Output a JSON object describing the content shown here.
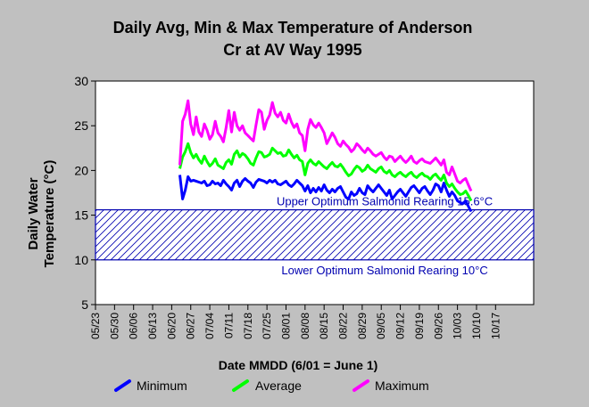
{
  "chart_data": {
    "type": "line",
    "title_line1": "Daily Avg, Min & Max Temperature of Anderson",
    "title_line2": "Cr at AV Way 1995",
    "xlabel": "Date MMDD (6/01 = June 1)",
    "ylabel_line1": "Daily Water",
    "ylabel_line2": "Temperature (°C)",
    "ylim": [
      5,
      30
    ],
    "yticks": [
      "5",
      "10",
      "15",
      "20",
      "25",
      "30"
    ],
    "xticks": [
      "05/23",
      "05/30",
      "06/06",
      "06/13",
      "06/20",
      "06/27",
      "07/04",
      "07/11",
      "07/18",
      "07/25",
      "08/01",
      "08/08",
      "08/15",
      "08/22",
      "08/29",
      "09/05",
      "09/12",
      "09/19",
      "09/26",
      "10/03",
      "10/10",
      "10/17"
    ],
    "x_start_day": 0,
    "x_end_day": 161,
    "band": {
      "upper": 15.6,
      "lower": 10,
      "upper_label": "Upper Optimum Salmonid Rearing 15.6°C",
      "lower_label": "Lower Optimum Salmonid Rearing 10°C"
    },
    "x_start_date": "05/23",
    "series": [
      {
        "name": "Minimum",
        "color": "#0000ff",
        "values": [
          19.5,
          16.8,
          17.8,
          19.3,
          18.8,
          18.9,
          18.8,
          18.7,
          18.6,
          18.8,
          18.3,
          18.4,
          18.8,
          18.5,
          18.6,
          18.3,
          18.9,
          18.5,
          18.2,
          17.8,
          18.6,
          18.9,
          18.2,
          18.8,
          19.1,
          18.8,
          18.6,
          18.1,
          18.7,
          19.0,
          18.9,
          18.8,
          18.6,
          18.9,
          18.7,
          18.9,
          18.5,
          18.4,
          18.6,
          18.8,
          18.4,
          18.2,
          18.5,
          18.9,
          18.6,
          18.3,
          17.7,
          18.3,
          17.5,
          18.0,
          17.6,
          18.1,
          17.7,
          18.4,
          17.8,
          17.5,
          17.9,
          17.6,
          18.0,
          18.2,
          17.6,
          17.0,
          16.8,
          17.6,
          17.2,
          17.4,
          18.0,
          17.5,
          17.3,
          18.3,
          17.9,
          17.6,
          18.0,
          18.4,
          18.0,
          17.6,
          17.2,
          17.8,
          16.8,
          17.2,
          17.6,
          17.9,
          17.5,
          17.1,
          17.6,
          18.1,
          18.3,
          17.9,
          17.5,
          18.0,
          18.2,
          17.7,
          17.3,
          17.8,
          18.5,
          18.3,
          17.6,
          18.6,
          17.8,
          17.1,
          17.6,
          17.2,
          16.6,
          16.4,
          16.3,
          16.6,
          16.0,
          15.4
        ],
        "x_start": "06/23"
      },
      {
        "name": "Average",
        "color": "#00ff00",
        "values": [
          20.2,
          21.5,
          22.1,
          23.0,
          22.0,
          21.4,
          21.8,
          21.2,
          20.8,
          21.6,
          21.0,
          20.5,
          20.8,
          21.3,
          20.6,
          20.4,
          20.2,
          20.9,
          21.2,
          20.7,
          21.8,
          22.2,
          21.5,
          21.9,
          21.7,
          21.3,
          20.8,
          20.6,
          21.4,
          22.1,
          22.0,
          21.5,
          21.6,
          21.8,
          22.5,
          22.2,
          21.9,
          22.0,
          21.6,
          21.7,
          22.3,
          21.8,
          21.4,
          21.7,
          21.2,
          21.0,
          19.5,
          20.8,
          21.2,
          20.8,
          20.6,
          21.0,
          20.7,
          20.4,
          20.2,
          20.6,
          20.9,
          20.5,
          20.4,
          20.7,
          20.3,
          19.8,
          19.4,
          19.6,
          20.1,
          20.5,
          20.3,
          19.9,
          20.1,
          20.6,
          20.2,
          20.0,
          19.8,
          20.2,
          20.4,
          19.9,
          19.7,
          20.0,
          19.5,
          19.3,
          19.6,
          19.8,
          19.5,
          19.3,
          19.6,
          19.8,
          19.4,
          19.2,
          19.5,
          19.7,
          19.4,
          19.3,
          19.0,
          19.4,
          19.6,
          19.2,
          18.9,
          19.5,
          18.6,
          18.2,
          18.5,
          18.0,
          17.6,
          17.3,
          17.4,
          17.7,
          17.2,
          16.6
        ],
        "x_start": "06/23"
      },
      {
        "name": "Maximum",
        "color": "#ff00ff",
        "values": [
          20.6,
          25.5,
          26.3,
          27.8,
          25.2,
          24.0,
          26.0,
          24.3,
          23.8,
          25.2,
          24.5,
          23.5,
          24.0,
          25.5,
          24.2,
          23.8,
          23.2,
          24.8,
          26.7,
          24.3,
          26.5,
          25.0,
          24.5,
          25.0,
          24.2,
          23.9,
          23.6,
          23.3,
          25.1,
          26.8,
          26.5,
          24.6,
          25.6,
          26.2,
          27.6,
          26.4,
          26.0,
          26.5,
          25.6,
          25.3,
          26.3,
          25.4,
          24.8,
          25.2,
          24.2,
          23.9,
          22.2,
          24.6,
          25.7,
          25.1,
          24.8,
          25.3,
          24.8,
          24.2,
          23.0,
          23.6,
          24.2,
          23.7,
          23.0,
          22.7,
          23.3,
          22.9,
          22.6,
          22.1,
          22.4,
          23.0,
          22.7,
          22.3,
          22.0,
          22.5,
          22.2,
          21.8,
          21.6,
          21.8,
          22.0,
          21.5,
          21.2,
          21.6,
          21.5,
          21.0,
          21.3,
          21.6,
          21.2,
          20.9,
          21.2,
          21.6,
          21.0,
          20.8,
          21.1,
          21.3,
          21.0,
          20.9,
          20.8,
          21.1,
          21.4,
          21.0,
          20.6,
          21.2,
          19.8,
          19.5,
          20.4,
          19.6,
          18.8,
          18.6,
          18.9,
          19.1,
          18.4,
          17.7
        ],
        "x_start": "06/23"
      }
    ]
  }
}
